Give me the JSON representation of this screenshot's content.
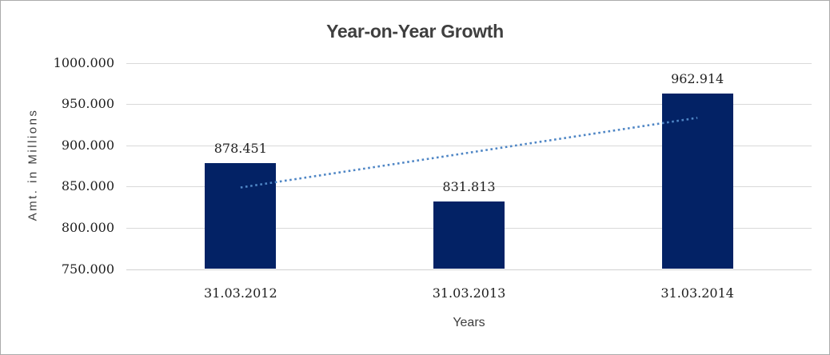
{
  "window": {
    "background": "#ffffff",
    "border_color": "#ababab"
  },
  "chart_data": {
    "type": "bar",
    "title": "Year-on-Year Growth",
    "xlabel": "Years",
    "ylabel": "Amt. in Millions",
    "categories": [
      "31.03.2012",
      "31.03.2013",
      "31.03.2014"
    ],
    "values": [
      878451,
      831813,
      962914
    ],
    "value_labels": [
      "878.451",
      "831.813",
      "962.914"
    ],
    "y_ticks": [
      1000000,
      950000,
      900000,
      850000,
      800000,
      750000
    ],
    "y_tick_labels": [
      "1000.000",
      "950.000",
      "900.000",
      "850.000",
      "800.000",
      "750.000"
    ],
    "ylim": [
      750000,
      1000000
    ],
    "grid": "horizontal-only",
    "legend": "none",
    "bar_color": "#032265",
    "gridline_color": "#d9d9d9",
    "baseline_color": "#d0d0d0",
    "trendline": {
      "style": "dotted",
      "color": "#4f86c5",
      "values": [
        848829,
        933288
      ]
    }
  }
}
